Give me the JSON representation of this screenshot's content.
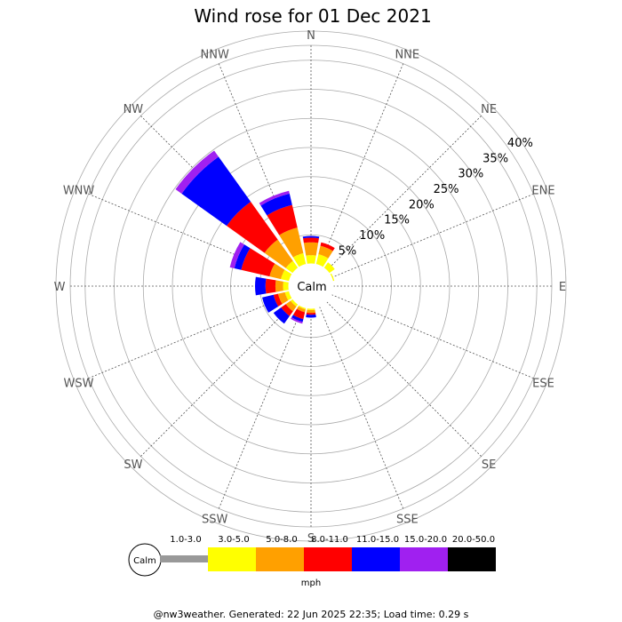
{
  "chart_data": {
    "type": "windrose",
    "title": "Wind rose for 01 Dec 2021",
    "directions": [
      "N",
      "NNE",
      "NE",
      "ENE",
      "E",
      "ESE",
      "SE",
      "SSE",
      "S",
      "SSW",
      "SW",
      "WSW",
      "W",
      "WNW",
      "NW",
      "NNW"
    ],
    "radial_unit": "%",
    "radial_ticks": [
      5,
      10,
      15,
      20,
      25,
      30,
      35,
      40
    ],
    "radial_tick_labels": [
      "5%",
      "10%",
      "15%",
      "20%",
      "25%",
      "30%",
      "35%",
      "40%"
    ],
    "calm_label": "Calm",
    "speed_bins": [
      {
        "label": "1.0-3.0",
        "color": "#999999"
      },
      {
        "label": "3.0-5.0",
        "color": "#ffff00"
      },
      {
        "label": "5.0-8.0",
        "color": "#ffa000"
      },
      {
        "label": "8.0-11.0",
        "color": "#ff0000"
      },
      {
        "label": "11.0-15.0",
        "color": "#0000ff"
      },
      {
        "label": "15.0-20.0",
        "color": "#a020f0"
      },
      {
        "label": "20.0-50.0",
        "color": "#000000"
      }
    ],
    "units": "mph",
    "series": [
      {
        "direction": "N",
        "values": [
          0.0,
          1.5,
          2.2,
          0.8,
          0.3,
          0.0,
          0.0
        ]
      },
      {
        "direction": "NNE",
        "values": [
          0.0,
          1.8,
          1.5,
          0.6,
          0.0,
          0.0,
          0.0
        ]
      },
      {
        "direction": "NE",
        "values": [
          0.0,
          1.2,
          0.0,
          0.0,
          0.0,
          0.0,
          0.0
        ]
      },
      {
        "direction": "ENE",
        "values": [
          0.0,
          0.3,
          0.0,
          0.0,
          0.0,
          0.0,
          0.0
        ]
      },
      {
        "direction": "E",
        "values": [
          0.0,
          0.0,
          0.0,
          0.0,
          0.0,
          0.0,
          0.0
        ]
      },
      {
        "direction": "ESE",
        "values": [
          0.0,
          0.0,
          0.0,
          0.0,
          0.0,
          0.0,
          0.0
        ]
      },
      {
        "direction": "SE",
        "values": [
          0.0,
          0.0,
          0.0,
          0.0,
          0.0,
          0.0,
          0.0
        ]
      },
      {
        "direction": "SSE",
        "values": [
          0.0,
          0.0,
          0.0,
          0.0,
          0.0,
          0.0,
          0.0
        ]
      },
      {
        "direction": "S",
        "values": [
          0.0,
          0.3,
          0.5,
          0.3,
          0.5,
          0.0,
          0.0
        ]
      },
      {
        "direction": "SSW",
        "values": [
          0.0,
          0.3,
          0.5,
          1.2,
          0.5,
          0.3,
          0.0
        ]
      },
      {
        "direction": "SW",
        "values": [
          0.0,
          0.5,
          1.0,
          1.0,
          1.6,
          0.0,
          0.0
        ]
      },
      {
        "direction": "WSW",
        "values": [
          0.0,
          0.8,
          1.2,
          0.8,
          2.0,
          0.0,
          0.0
        ]
      },
      {
        "direction": "W",
        "values": [
          0.0,
          1.0,
          1.3,
          1.7,
          1.8,
          0.0,
          0.0
        ]
      },
      {
        "direction": "WNW",
        "values": [
          0.0,
          1.5,
          2.0,
          5.0,
          1.2,
          0.8,
          0.0
        ]
      },
      {
        "direction": "NW",
        "values": [
          0.0,
          1.5,
          4.5,
          8.0,
          9.5,
          1.3,
          0.0
        ]
      },
      {
        "direction": "NNW",
        "values": [
          0.0,
          2.0,
          4.5,
          4.0,
          2.0,
          0.5,
          0.0
        ]
      }
    ]
  },
  "footer": "@nw3weather. Generated: 22 Jun 2025 22:35; Load time: 0.29 s"
}
